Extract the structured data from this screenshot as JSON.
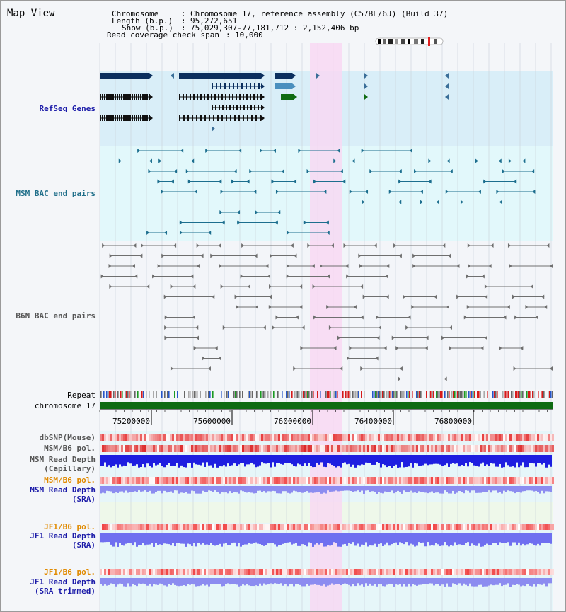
{
  "title": "Map View",
  "info": {
    "chromosome_key": "Chromosome",
    "chromosome_val": "Chromosome 17, reference assembly (C57BL/6J) (Build 37)",
    "length_key": "Length (b.p.)",
    "length_val": "95,272,651",
    "show_key": "Show (b.p.)",
    "show_val": "75,029,307-77,181,712 : 2,152,406 bp",
    "coverage_key": "Read coverage check span",
    "coverage_val": "10,000"
  },
  "tracks": {
    "refseq": "RefSeq Genes",
    "msm_bac": "MSM BAC end pairs",
    "b6n_bac": "B6N BAC end pairs",
    "repeat": "Repeat",
    "chromosome": "chromosome 17",
    "dbsnp": "dbSNP(Mouse)",
    "msm_b6_pol": "MSM/B6 pol.",
    "msm_depth_cap_1": "MSM Read Depth",
    "msm_depth_cap_2": "(Capillary)",
    "msm_b6_pol_2": "MSM/B6 pol.",
    "msm_depth_sra_1": "MSM Read Depth",
    "msm_depth_sra_2": "(SRA)",
    "jf1_b6_pol": "JF1/B6 pol.",
    "jf1_depth_sra_1": "JF1 Read Depth",
    "jf1_depth_sra_2": "(SRA)",
    "jf1_b6_pol_2": "JF1/B6 pol.",
    "jf1_depth_trim_1": "JF1 Read Depth",
    "jf1_depth_trim_2": "(SRA trimmed)"
  },
  "ruler": {
    "ticks": [
      "75200000",
      "75600000",
      "76000000",
      "76400000",
      "76800000"
    ]
  },
  "colors": {
    "refseq_bg": "#d9eef8",
    "msm_bac_bg": "#e2f8fb",
    "b6n_bac_bg": "#f3f5f9",
    "highlight": "#f9d7f2",
    "gene_dark": "#0b2f5e",
    "gene_mid": "#4a8fbe",
    "gene_green": "#0f6b12",
    "bac_teal": "#1c6e8e",
    "bac_gray": "#6f6f6f",
    "chrom_green": "#0f6b12",
    "depth_blue": "#1e1ee0",
    "depth_light": "#8c8cf0"
  }
}
